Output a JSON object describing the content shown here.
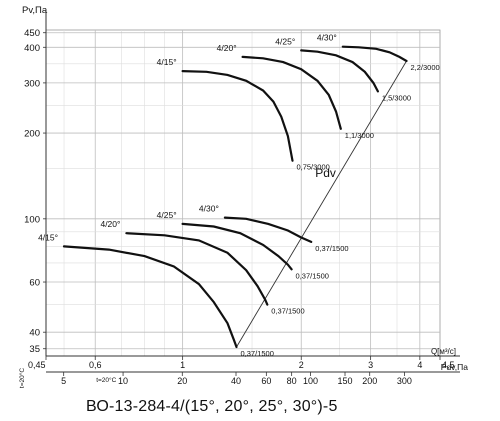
{
  "caption": "ВО-13-284-4/(15°, 20°, 25°, 30°)-5",
  "chart_data": {
    "type": "line",
    "title": "",
    "x_scale": "log",
    "y_scale": "log",
    "ylabel": "Pv,Па",
    "xlabel": "Q[м³/с]",
    "xlabel2": "Pdv,Па",
    "dynamic_pressure_line_label": "Pdv",
    "xlim": [
      0.45,
      4.5
    ],
    "ylim": [
      33,
      460
    ],
    "y_ticks": [
      35,
      40,
      60,
      100,
      200,
      300,
      400,
      450
    ],
    "x_ticks": [
      0.45,
      0.6,
      1,
      2,
      3,
      4,
      4.5
    ],
    "x_tick_labels": [
      "0,45",
      "0,6",
      "1",
      "2",
      "3",
      "4",
      "4,5"
    ],
    "pdv_ticks": [
      {
        "q": 0.499,
        "label": "5"
      },
      {
        "q": 0.706,
        "label": "10"
      },
      {
        "q": 0.998,
        "label": "20"
      },
      {
        "q": 1.366,
        "label": "40"
      },
      {
        "q": 1.631,
        "label": "60"
      },
      {
        "q": 1.891,
        "label": "80"
      },
      {
        "q": 2.112,
        "label": "100"
      },
      {
        "q": 2.583,
        "label": "150"
      },
      {
        "q": 2.984,
        "label": "200"
      },
      {
        "q": 3.655,
        "label": "300"
      }
    ],
    "side_label_left": "t=20°C",
    "side_label_axis": "t=20°C",
    "grid": true,
    "legend": "none",
    "groups": [
      {
        "name": "",
        "series": [
          {
            "blade_label": "4/15°",
            "end_label": "0,75/3000",
            "points": [
              [
                1.0,
                330
              ],
              [
                1.15,
                328
              ],
              [
                1.3,
                320
              ],
              [
                1.45,
                305
              ],
              [
                1.6,
                282
              ],
              [
                1.7,
                258
              ],
              [
                1.78,
                228
              ],
              [
                1.85,
                195
              ],
              [
                1.9,
                160
              ]
            ]
          },
          {
            "blade_label": "4/20°",
            "end_label": "1,1/3000",
            "points": [
              [
                1.42,
                370
              ],
              [
                1.6,
                366
              ],
              [
                1.8,
                355
              ],
              [
                2.0,
                335
              ],
              [
                2.2,
                305
              ],
              [
                2.35,
                272
              ],
              [
                2.45,
                238
              ],
              [
                2.52,
                207
              ]
            ]
          },
          {
            "blade_label": "4/25°",
            "end_label": "1,5/3000",
            "points": [
              [
                2.0,
                390
              ],
              [
                2.2,
                386
              ],
              [
                2.45,
                375
              ],
              [
                2.7,
                355
              ],
              [
                2.9,
                328
              ],
              [
                3.05,
                300
              ],
              [
                3.13,
                280
              ]
            ]
          },
          {
            "blade_label": "4/30°",
            "end_label": "2,2/3000",
            "points": [
              [
                2.55,
                402
              ],
              [
                2.8,
                400
              ],
              [
                3.1,
                395
              ],
              [
                3.35,
                384
              ],
              [
                3.55,
                370
              ],
              [
                3.7,
                358
              ]
            ]
          }
        ]
      },
      {
        "name": "",
        "series": [
          {
            "blade_label": "4/15°",
            "end_label": "0,37/1500",
            "points": [
              [
                0.5,
                80
              ],
              [
                0.65,
                78
              ],
              [
                0.8,
                74
              ],
              [
                0.95,
                68
              ],
              [
                1.1,
                59
              ],
              [
                1.2,
                51
              ],
              [
                1.3,
                43
              ],
              [
                1.35,
                37.5
              ],
              [
                1.37,
                35.5
              ]
            ]
          },
          {
            "blade_label": "4/20°",
            "end_label": "0,37/1500",
            "points": [
              [
                0.72,
                89
              ],
              [
                0.9,
                87.5
              ],
              [
                1.1,
                84
              ],
              [
                1.3,
                76
              ],
              [
                1.45,
                66
              ],
              [
                1.55,
                58
              ],
              [
                1.62,
                52
              ],
              [
                1.64,
                50
              ]
            ]
          },
          {
            "blade_label": "4/25°",
            "end_label": "0,37/1500",
            "points": [
              [
                1.0,
                96
              ],
              [
                1.2,
                94
              ],
              [
                1.4,
                89
              ],
              [
                1.6,
                81
              ],
              [
                1.75,
                74
              ],
              [
                1.85,
                69
              ],
              [
                1.89,
                66.5
              ]
            ]
          },
          {
            "blade_label": "4/30°",
            "end_label": "0,37/1500",
            "points": [
              [
                1.28,
                101
              ],
              [
                1.45,
                100
              ],
              [
                1.65,
                96
              ],
              [
                1.85,
                91
              ],
              [
                2.0,
                86
              ],
              [
                2.12,
                83
              ]
            ]
          }
        ]
      }
    ],
    "dynamic_pressure_line": [
      [
        1.37,
        35.5
      ],
      [
        3.7,
        358
      ]
    ]
  }
}
